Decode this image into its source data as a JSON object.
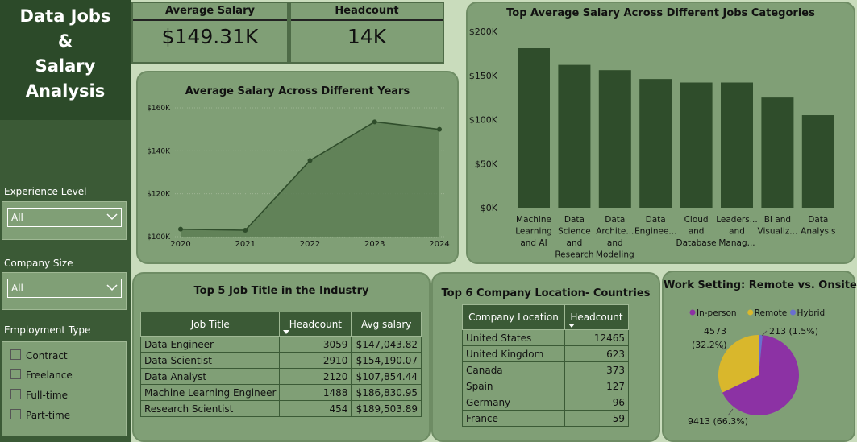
{
  "sidebar": {
    "title_lines": [
      "Data Jobs",
      "&",
      "Salary",
      "Analysis"
    ],
    "experience": {
      "label": "Experience Level",
      "value": "All"
    },
    "company_size": {
      "label": "Company Size",
      "value": "All"
    },
    "employment": {
      "label": "Employment Type",
      "options": [
        "Contract",
        "Freelance",
        "Full-time",
        "Part-time"
      ]
    }
  },
  "kpis": {
    "avg_salary": {
      "label": "Average Salary",
      "value": "$149.31K"
    },
    "headcount": {
      "label": "Headcount",
      "value": "14K"
    }
  },
  "jobs_table": {
    "title": "Top 5 Job Title in the Industry",
    "headers": [
      "Job Title",
      "Headcount",
      "Avg salary"
    ],
    "rows": [
      [
        "Data Engineer",
        "3059",
        "$147,043.82"
      ],
      [
        "Data Scientist",
        "2910",
        "$154,190.07"
      ],
      [
        "Data Analyst",
        "2120",
        "$107,854.44"
      ],
      [
        "Machine Learning Engineer",
        "1488",
        "$186,830.95"
      ],
      [
        "Research Scientist",
        "454",
        "$189,503.89"
      ]
    ]
  },
  "countries_table": {
    "title": "Top 6 Company Location- Countries",
    "headers": [
      "Company Location",
      "Headcount"
    ],
    "rows": [
      [
        "United States",
        "12465"
      ],
      [
        "United Kingdom",
        "623"
      ],
      [
        "Canada",
        "373"
      ],
      [
        "Spain",
        "127"
      ],
      [
        "Germany",
        "96"
      ],
      [
        "France",
        "59"
      ]
    ]
  },
  "colors": {
    "sidebar": "#3b5a36",
    "panel": "#809f76",
    "bar": "#2f4d2b",
    "area_fill": "#5c7d53",
    "area_line": "#2f4d2b",
    "in_person": "#8c32a4",
    "remote": "#d9b72c",
    "hybrid": "#6a6fd0"
  },
  "chart_data": [
    {
      "type": "area",
      "title": "Average Salary Across Different Years",
      "x": [
        "2020",
        "2021",
        "2022",
        "2023",
        "2024"
      ],
      "values": [
        103500,
        103000,
        135500,
        153500,
        150000
      ],
      "ylim": [
        100000,
        160000
      ],
      "yticks": [
        "$100K",
        "$120K",
        "$140K",
        "$160K"
      ],
      "ytick_values": [
        100000,
        120000,
        140000,
        160000
      ],
      "grid": true
    },
    {
      "type": "bar",
      "title": "Top Average Salary Across Different Jobs Categories",
      "categories": [
        [
          "Machine",
          "Learning",
          "and AI"
        ],
        [
          "Data",
          "Science",
          "and",
          "Research"
        ],
        [
          "Data",
          "Archite...",
          "and",
          "Modeling"
        ],
        [
          "Data",
          "Enginee..."
        ],
        [
          "Cloud",
          "and",
          "Database"
        ],
        [
          "Leaders...",
          "and",
          "Manag..."
        ],
        [
          "BI and",
          "Visualiz..."
        ],
        [
          "Data",
          "Analysis"
        ]
      ],
      "values": [
        181000,
        162000,
        156000,
        146000,
        142000,
        142000,
        125000,
        105000
      ],
      "ylim": [
        0,
        200000
      ],
      "yticks": [
        "$0K",
        "$50K",
        "$100K",
        "$150K",
        "$200K"
      ],
      "ytick_values": [
        0,
        50000,
        100000,
        150000,
        200000
      ]
    },
    {
      "type": "pie",
      "title": "Work Setting: Remote vs. Onsite",
      "legend": [
        "In-person",
        "Remote",
        "Hybrid"
      ],
      "values": [
        9413,
        4573,
        213
      ],
      "labels": [
        "9413 (66.3%)",
        "4573 (32.2%)",
        "213 (1.5%)"
      ],
      "remote_label_lines": [
        "4573",
        "(32.2%)"
      ]
    }
  ]
}
